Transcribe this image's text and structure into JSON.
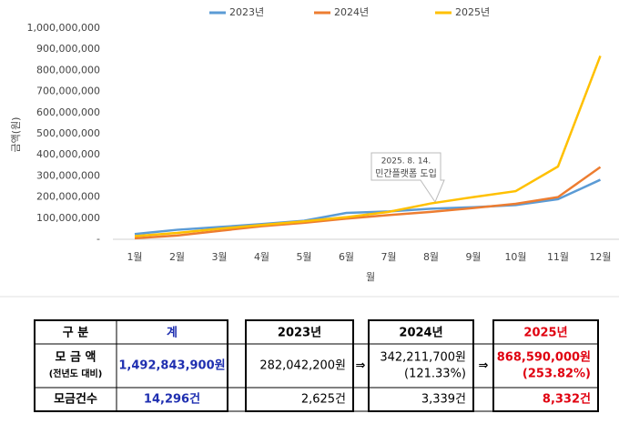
{
  "chart_data": {
    "type": "line",
    "y_label": "금액(원)",
    "x_label": "월",
    "annotation": [
      "2025. 8. 14.",
      "민간플랫폼 도입"
    ],
    "categories": [
      "1월",
      "2월",
      "3월",
      "4월",
      "5월",
      "6월",
      "7월",
      "8월",
      "9월",
      "10월",
      "11월",
      "12월"
    ],
    "series": [
      {
        "name": "2023년",
        "color": "#5b9bd5",
        "values": [
          25000000,
          45000000,
          58000000,
          72000000,
          88000000,
          125000000,
          132000000,
          145000000,
          152000000,
          162000000,
          190000000,
          282042200
        ]
      },
      {
        "name": "2024년",
        "color": "#ed7d31",
        "values": [
          5000000,
          18000000,
          40000000,
          62000000,
          78000000,
          98000000,
          115000000,
          130000000,
          148000000,
          168000000,
          200000000,
          342211700
        ]
      },
      {
        "name": "2025년",
        "color": "#ffc000",
        "values": [
          15000000,
          30000000,
          50000000,
          68000000,
          85000000,
          105000000,
          130000000,
          170000000,
          200000000,
          228000000,
          345000000,
          868590000
        ]
      }
    ],
    "ylim": [
      0,
      1000000000
    ],
    "yticks": [
      {
        "value": 0,
        "label": "-"
      },
      {
        "value": 100000000,
        "label": "100,000,000"
      },
      {
        "value": 200000000,
        "label": "200,000,000"
      },
      {
        "value": 300000000,
        "label": "300,000,000"
      },
      {
        "value": 400000000,
        "label": "400,000,000"
      },
      {
        "value": 500000000,
        "label": "500,000,000"
      },
      {
        "value": 600000000,
        "label": "600,000,000"
      },
      {
        "value": 700000000,
        "label": "700,000,000"
      },
      {
        "value": 800000000,
        "label": "800,000,000"
      },
      {
        "value": 900000000,
        "label": "900,000,000"
      },
      {
        "value": 1000000000,
        "label": "1,000,000,000"
      }
    ],
    "grid": false,
    "legend": "top"
  },
  "table": {
    "header": [
      "구 분",
      "계",
      "2023년",
      "2024년",
      "2025년"
    ],
    "rows": [
      {
        "label": [
          "모 금 액",
          "(전년도 대비)"
        ],
        "cells": [
          [
            "1,492,843,900원"
          ],
          [
            "282,042,200원"
          ],
          [
            "342,211,700원",
            "(121.33%)"
          ],
          [
            "868,590,000원",
            "(253.82%)"
          ]
        ]
      },
      {
        "label": [
          "모금건수"
        ],
        "cells": [
          [
            "14,296건"
          ],
          [
            "2,625건"
          ],
          [
            "3,339건"
          ],
          [
            "8,332건"
          ]
        ]
      }
    ]
  }
}
